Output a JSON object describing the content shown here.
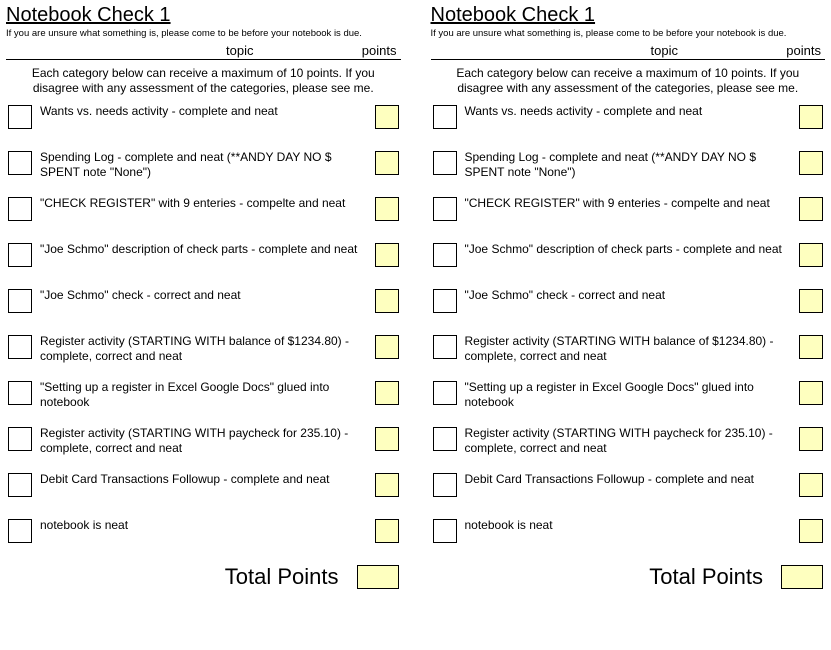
{
  "title": "Notebook Check 1",
  "subtitle": "If you are unsure what something is, please come to be before your notebook is due.",
  "header": {
    "topic": "topic",
    "points": "points"
  },
  "intro": "Each category below can receive a maximum of 10 points.  If you disagree with any assessment of the categories, please see me.",
  "colors": {
    "yellow": "#feffbf",
    "white": "#ffffff",
    "border": "#000000",
    "text": "#000000"
  },
  "items": [
    {
      "text": "Wants vs. needs activity - complete and neat"
    },
    {
      "text": "Spending Log - complete and neat (**ANDY DAY NO $ SPENT note \"None\")"
    },
    {
      "text": "\"CHECK REGISTER\" with 9 enteries - compelte and neat"
    },
    {
      "text": "\"Joe Schmo\" description of check parts - complete and neat"
    },
    {
      "text": "\"Joe Schmo\" check - correct and neat"
    },
    {
      "text": "Register activity (STARTING WITH balance of $1234.80) - complete, correct and neat"
    },
    {
      "text": "\"Setting up a register in Excel Google Docs\" glued into notebook"
    },
    {
      "text": "Register activity (STARTING WITH paycheck for 235.10) - complete, correct and neat"
    },
    {
      "text": "Debit Card Transactions Followup - complete and neat"
    },
    {
      "text": "notebook is neat"
    }
  ],
  "total_label": "Total Points"
}
